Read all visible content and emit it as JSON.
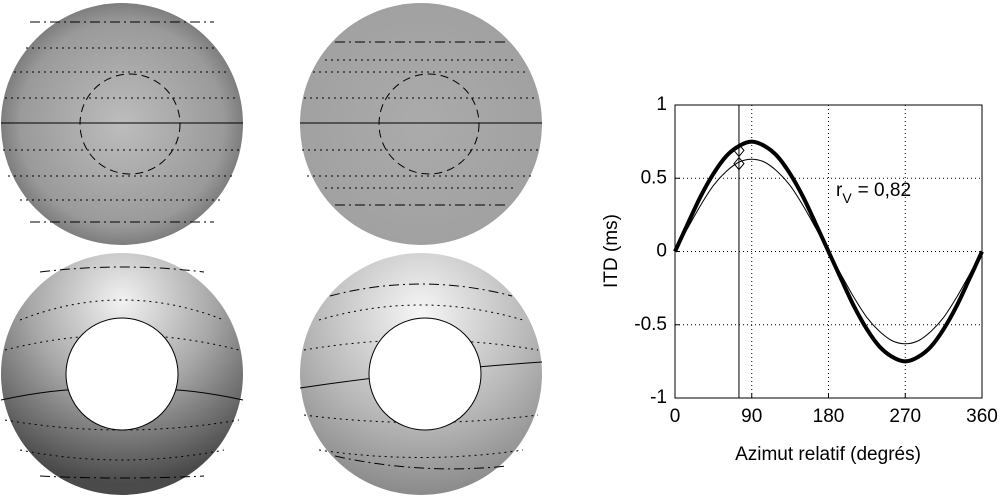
{
  "chart_data": {
    "type": "line",
    "ylabel": "ITD (ms)",
    "xlabel": "Azimut relatif (degrés)",
    "annotation": {
      "symbol": "r",
      "subscript": "V",
      "text": "= 0,82"
    },
    "x": [
      0,
      15,
      30,
      45,
      60,
      75,
      90,
      105,
      120,
      135,
      150,
      165,
      180,
      195,
      210,
      225,
      240,
      255,
      270,
      285,
      300,
      315,
      330,
      345,
      360
    ],
    "series": [
      {
        "color": "#000000",
        "width": 4,
        "values": [
          0,
          0.19,
          0.375,
          0.53,
          0.65,
          0.72,
          0.75,
          0.72,
          0.65,
          0.53,
          0.375,
          0.19,
          0,
          -0.19,
          -0.375,
          -0.53,
          -0.65,
          -0.72,
          -0.75,
          -0.72,
          -0.65,
          -0.53,
          -0.375,
          -0.19,
          0
        ]
      },
      {
        "color": "#000000",
        "width": 1,
        "values": [
          0,
          0.16,
          0.315,
          0.45,
          0.546,
          0.61,
          0.63,
          0.61,
          0.546,
          0.45,
          0.315,
          0.16,
          0,
          -0.16,
          -0.315,
          -0.45,
          -0.546,
          -0.61,
          -0.63,
          -0.61,
          -0.546,
          -0.45,
          -0.315,
          -0.16,
          0
        ]
      }
    ],
    "vline": 75,
    "markers": {
      "x": [
        75,
        75
      ],
      "y": [
        0.69,
        0.6
      ]
    },
    "xlim": [
      0,
      360
    ],
    "ylim": [
      -1,
      1
    ],
    "xticks": [
      0,
      90,
      180,
      270,
      360
    ],
    "yticks": [
      -1,
      -0.5,
      0,
      0.5,
      1
    ],
    "grid": true
  }
}
